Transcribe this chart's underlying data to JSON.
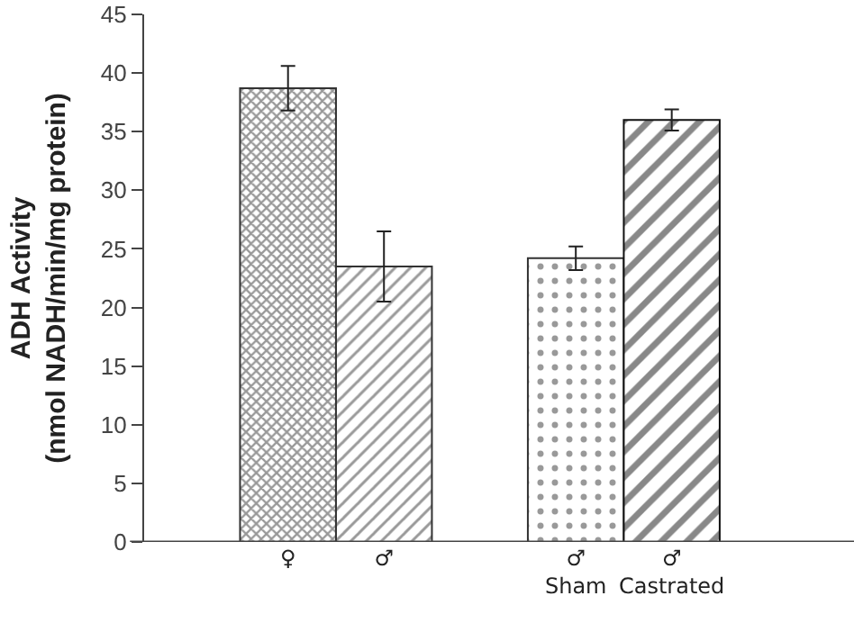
{
  "chart_data": {
    "type": "bar",
    "ylabel": "ADH Activity\n(nmol NADH/min/mg protein)",
    "categories": [
      "♀",
      "♂",
      null,
      "♂\nSham",
      "♂\nCastrated"
    ],
    "values": [
      38.7,
      23.5,
      null,
      24.2,
      36.0
    ],
    "errors": [
      1.9,
      3.0,
      null,
      1.0,
      0.9
    ],
    "colors": [
      "#333333",
      "#333333",
      null,
      "#333333",
      "#111111"
    ],
    "ylim": [
      0,
      45
    ],
    "yticks": [
      0,
      5,
      10,
      15,
      20,
      25,
      30,
      35,
      40,
      45
    ]
  }
}
